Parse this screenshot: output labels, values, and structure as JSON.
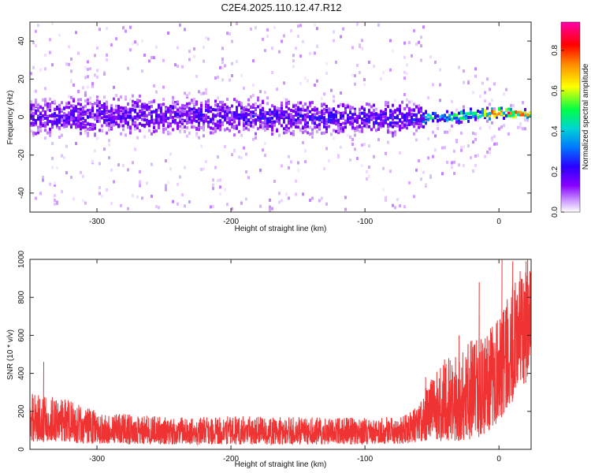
{
  "figure": {
    "title": "C2E4.2025.110.12.47.R12"
  },
  "chart_data": [
    {
      "type": "heatmap",
      "xlabel": "Height of straight line (km)",
      "ylabel": "Frequency (Hz)",
      "xlim": [
        -350,
        24
      ],
      "ylim": [
        -50,
        50
      ],
      "x_ticks": [
        -300,
        -200,
        -100,
        0
      ],
      "y_ticks": [
        -40,
        -20,
        0,
        20,
        40
      ],
      "colorbar": {
        "label": "Normalized spectral amplitude",
        "range": [
          0,
          0.94
        ],
        "ticks": [
          0.0,
          0.2,
          0.4,
          0.6,
          0.8
        ],
        "tick_labels": [
          "0.0",
          "0.2",
          "0.4",
          "0.6",
          "0.8"
        ],
        "colormap": [
          "#ffffff",
          "#e6d9ff",
          "#8800ff",
          "#2a00ff",
          "#00c8ff",
          "#00ff66",
          "#ffff00",
          "#ff8800",
          "#ff0000",
          "#ff0099"
        ]
      },
      "band_profile": [
        {
          "x": -350,
          "center": 0,
          "halfwidth": 14
        },
        {
          "x": -250,
          "center": 1,
          "halfwidth": 13
        },
        {
          "x": -150,
          "center": 0,
          "halfwidth": 12
        },
        {
          "x": -60,
          "center": -1,
          "halfwidth": 11
        },
        {
          "x": -52,
          "center": 0,
          "halfwidth": 4
        },
        {
          "x": -30,
          "center": 0,
          "halfwidth": 5
        },
        {
          "x": -10,
          "center": 2,
          "halfwidth": 4
        },
        {
          "x": 10,
          "center": 2,
          "halfwidth": 4
        },
        {
          "x": 24,
          "center": 2,
          "halfwidth": 3
        }
      ],
      "peak_amplitude": [
        {
          "x": -350,
          "value": 0.2
        },
        {
          "x": -60,
          "value": 0.25
        },
        {
          "x": -50,
          "value": 0.5
        },
        {
          "x": -20,
          "value": 0.55
        },
        {
          "x": -5,
          "value": 0.85
        },
        {
          "x": 24,
          "value": 0.8
        }
      ],
      "scatter_extent_hz": [
        {
          "x": -350,
          "value": 50
        },
        {
          "x": -55,
          "value": 50
        },
        {
          "x": -50,
          "value": 30
        },
        {
          "x": -20,
          "value": 30
        },
        {
          "x": 24,
          "value": 5
        }
      ]
    },
    {
      "type": "line",
      "xlabel": "Height of straight line (km)",
      "ylabel": "SNR (10 * v/v)",
      "xlim": [
        -350,
        24
      ],
      "ylim": [
        0,
        1000
      ],
      "x_ticks": [
        -300,
        -200,
        -100,
        0
      ],
      "y_ticks": [
        0,
        200,
        400,
        600,
        800,
        1000
      ],
      "series": [
        {
          "color": "#ef3333",
          "envelope": [
            {
              "x": -350,
              "low": 40,
              "high": 300
            },
            {
              "x": -320,
              "low": 35,
              "high": 260
            },
            {
              "x": -300,
              "low": 30,
              "high": 200
            },
            {
              "x": -250,
              "low": 25,
              "high": 170
            },
            {
              "x": -200,
              "low": 25,
              "high": 175
            },
            {
              "x": -150,
              "low": 25,
              "high": 170
            },
            {
              "x": -100,
              "low": 25,
              "high": 165
            },
            {
              "x": -70,
              "low": 30,
              "high": 180
            },
            {
              "x": -60,
              "low": 40,
              "high": 230
            },
            {
              "x": -50,
              "low": 50,
              "high": 400
            },
            {
              "x": -40,
              "low": 40,
              "high": 480
            },
            {
              "x": -30,
              "low": 45,
              "high": 500
            },
            {
              "x": -20,
              "low": 50,
              "high": 580
            },
            {
              "x": -10,
              "low": 80,
              "high": 600
            },
            {
              "x": 0,
              "low": 150,
              "high": 720
            },
            {
              "x": 10,
              "low": 250,
              "high": 880
            },
            {
              "x": 20,
              "low": 350,
              "high": 1000
            },
            {
              "x": 24,
              "low": 380,
              "high": 1000
            }
          ],
          "peaks": [
            {
              "x": -340,
              "value": 460
            },
            {
              "x": -55,
              "value": 380
            },
            {
              "x": -30,
              "value": 600
            },
            {
              "x": -15,
              "value": 700
            },
            {
              "x": -15,
              "value": 880
            },
            {
              "x": 2,
              "value": 1000
            },
            {
              "x": 10,
              "value": 990
            },
            {
              "x": 20,
              "value": 990
            }
          ]
        }
      ]
    }
  ]
}
